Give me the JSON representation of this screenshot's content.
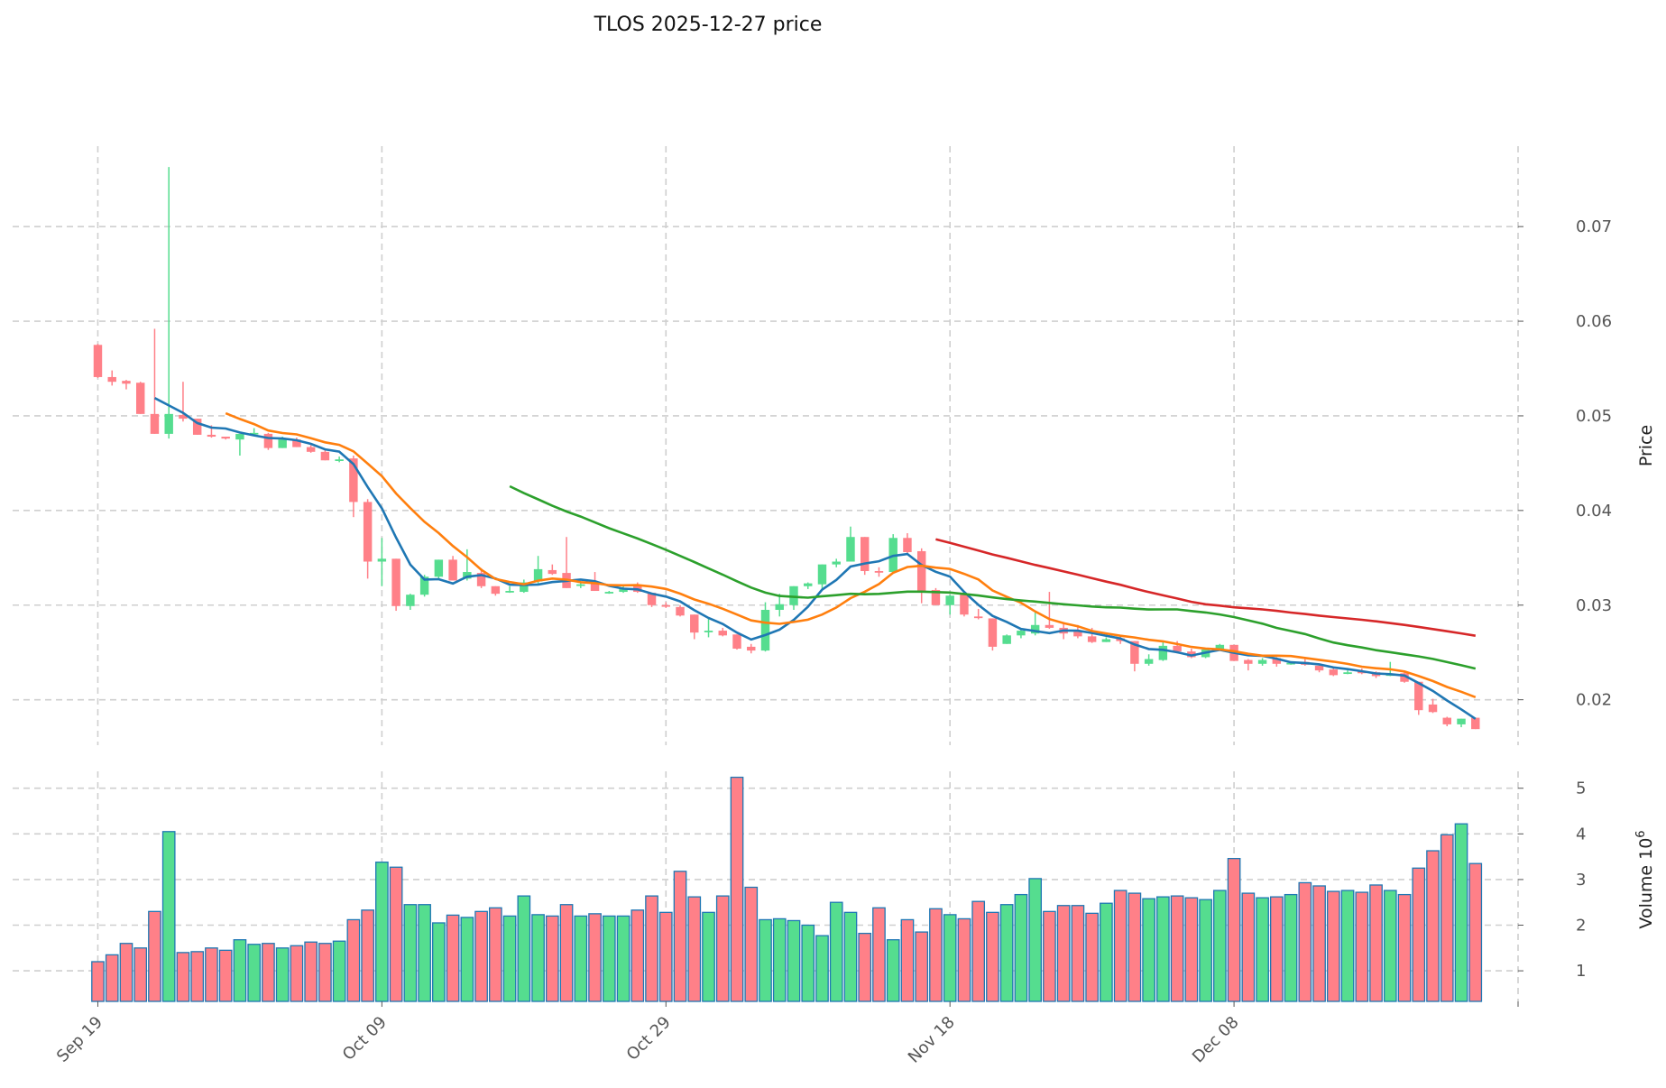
{
  "chart_data": {
    "type": "candlestick",
    "title": "TLOS  2025-12-27  price",
    "ylabel": "Price",
    "volume_ylabel": "Volume  10",
    "volume_ylabel_exp": "6",
    "start_date": "Sep 19",
    "x_tick_labels": [
      {
        "day": 0,
        "label": "Sep 19"
      },
      {
        "day": 20,
        "label": "Oct 09"
      },
      {
        "day": 40,
        "label": "Oct 29"
      },
      {
        "day": 60,
        "label": "Nov 18"
      },
      {
        "day": 80,
        "label": "Dec 08"
      },
      {
        "day": 100,
        "label": ""
      }
    ],
    "xlim": [
      -6,
      100
    ],
    "price_ylim": [
      0.0152,
      0.0785
    ],
    "price_ticks": [
      "0.02",
      "0.03",
      "0.04",
      "0.05",
      "0.06",
      "0.07"
    ],
    "volume_ylim": [
      0.33,
      5.37
    ],
    "volume_ticks": [
      "1",
      "2",
      "3",
      "4",
      "5"
    ],
    "grid": true,
    "colors": {
      "up": "#55dd8f",
      "down": "#ff8088",
      "volume_edge": "#1f77b4"
    },
    "moving_averages": [
      {
        "period": 5,
        "color": "#1f77b4"
      },
      {
        "period": 10,
        "color": "#ff7f0e"
      },
      {
        "period": 30,
        "color": "#2ca02c"
      },
      {
        "period": 60,
        "color": "#d62728"
      }
    ],
    "ohlc": [
      [
        0.0575,
        0.0576,
        0.054,
        0.0541
      ],
      [
        0.0541,
        0.0548,
        0.0532,
        0.0536
      ],
      [
        0.0537,
        0.0538,
        0.0528,
        0.0534
      ],
      [
        0.0535,
        0.0536,
        0.0502,
        0.0502
      ],
      [
        0.0502,
        0.0592,
        0.0481,
        0.0481
      ],
      [
        0.0481,
        0.0763,
        0.0476,
        0.0502
      ],
      [
        0.0501,
        0.0536,
        0.0494,
        0.0497
      ],
      [
        0.0497,
        0.0497,
        0.048,
        0.048
      ],
      [
        0.048,
        0.049,
        0.0477,
        0.0478
      ],
      [
        0.0478,
        0.0478,
        0.0475,
        0.0476
      ],
      [
        0.0475,
        0.0481,
        0.0458,
        0.0481
      ],
      [
        0.0481,
        0.0487,
        0.0481,
        0.0482
      ],
      [
        0.0481,
        0.0482,
        0.0464,
        0.0466
      ],
      [
        0.0466,
        0.0478,
        0.0466,
        0.0475
      ],
      [
        0.0475,
        0.0477,
        0.0467,
        0.0467
      ],
      [
        0.0467,
        0.0469,
        0.0461,
        0.0462
      ],
      [
        0.0462,
        0.0464,
        0.0453,
        0.0453
      ],
      [
        0.0453,
        0.0457,
        0.0451,
        0.0454
      ],
      [
        0.0455,
        0.0458,
        0.0393,
        0.0409
      ],
      [
        0.0409,
        0.0412,
        0.0328,
        0.0346
      ],
      [
        0.0346,
        0.0371,
        0.032,
        0.0349
      ],
      [
        0.0349,
        0.0349,
        0.0294,
        0.0299
      ],
      [
        0.0299,
        0.0312,
        0.0295,
        0.0311
      ],
      [
        0.0311,
        0.0332,
        0.0309,
        0.033
      ],
      [
        0.033,
        0.0348,
        0.0328,
        0.0348
      ],
      [
        0.0348,
        0.0352,
        0.0326,
        0.0326
      ],
      [
        0.0328,
        0.0359,
        0.0326,
        0.0335
      ],
      [
        0.0334,
        0.0339,
        0.0318,
        0.032
      ],
      [
        0.032,
        0.032,
        0.031,
        0.0312
      ],
      [
        0.0314,
        0.032,
        0.0313,
        0.0315
      ],
      [
        0.0314,
        0.0327,
        0.0313,
        0.0324
      ],
      [
        0.0325,
        0.0352,
        0.0323,
        0.0338
      ],
      [
        0.0337,
        0.0343,
        0.0332,
        0.0333
      ],
      [
        0.0334,
        0.0372,
        0.0318,
        0.0318
      ],
      [
        0.0321,
        0.0325,
        0.0318,
        0.0322
      ],
      [
        0.0324,
        0.0335,
        0.0315,
        0.0315
      ],
      [
        0.0313,
        0.0315,
        0.0312,
        0.0314
      ],
      [
        0.0314,
        0.032,
        0.0313,
        0.0318
      ],
      [
        0.032,
        0.0324,
        0.0313,
        0.0314
      ],
      [
        0.0313,
        0.0313,
        0.0298,
        0.03
      ],
      [
        0.03,
        0.0303,
        0.0297,
        0.0299
      ],
      [
        0.0298,
        0.03,
        0.0288,
        0.0289
      ],
      [
        0.029,
        0.029,
        0.0264,
        0.0271
      ],
      [
        0.0272,
        0.0287,
        0.0266,
        0.0273
      ],
      [
        0.0273,
        0.0276,
        0.0267,
        0.0268
      ],
      [
        0.0269,
        0.0269,
        0.0253,
        0.0254
      ],
      [
        0.0256,
        0.0259,
        0.0249,
        0.0252
      ],
      [
        0.0252,
        0.0303,
        0.0251,
        0.0295
      ],
      [
        0.0295,
        0.0312,
        0.0288,
        0.0301
      ],
      [
        0.03,
        0.032,
        0.0295,
        0.032
      ],
      [
        0.032,
        0.0324,
        0.0317,
        0.0323
      ],
      [
        0.0322,
        0.0343,
        0.0316,
        0.0343
      ],
      [
        0.0343,
        0.0349,
        0.034,
        0.0346
      ],
      [
        0.0346,
        0.0383,
        0.0346,
        0.0372
      ],
      [
        0.0372,
        0.0372,
        0.0332,
        0.0336
      ],
      [
        0.0336,
        0.034,
        0.033,
        0.0335
      ],
      [
        0.0335,
        0.0375,
        0.0335,
        0.0371
      ],
      [
        0.0371,
        0.0376,
        0.0355,
        0.0356
      ],
      [
        0.0357,
        0.036,
        0.0302,
        0.0314
      ],
      [
        0.0316,
        0.0318,
        0.03,
        0.03
      ],
      [
        0.03,
        0.0311,
        0.029,
        0.031
      ],
      [
        0.0311,
        0.0312,
        0.0288,
        0.029
      ],
      [
        0.0288,
        0.0296,
        0.0285,
        0.0287
      ],
      [
        0.0286,
        0.0286,
        0.0252,
        0.0256
      ],
      [
        0.0259,
        0.0269,
        0.0259,
        0.0268
      ],
      [
        0.0268,
        0.0276,
        0.0265,
        0.0273
      ],
      [
        0.027,
        0.0292,
        0.0268,
        0.0279
      ],
      [
        0.0279,
        0.0314,
        0.0275,
        0.0276
      ],
      [
        0.0276,
        0.0282,
        0.0264,
        0.027
      ],
      [
        0.0272,
        0.0279,
        0.0265,
        0.0267
      ],
      [
        0.0267,
        0.0276,
        0.026,
        0.0261
      ],
      [
        0.0261,
        0.0266,
        0.0261,
        0.0264
      ],
      [
        0.0265,
        0.0267,
        0.0259,
        0.0262
      ],
      [
        0.0262,
        0.0262,
        0.023,
        0.0238
      ],
      [
        0.0238,
        0.0248,
        0.0236,
        0.0243
      ],
      [
        0.0242,
        0.0261,
        0.0241,
        0.0257
      ],
      [
        0.0257,
        0.0262,
        0.0249,
        0.0251
      ],
      [
        0.0251,
        0.0254,
        0.0244,
        0.0245
      ],
      [
        0.0245,
        0.0254,
        0.0244,
        0.0253
      ],
      [
        0.0253,
        0.0259,
        0.0252,
        0.0258
      ],
      [
        0.0258,
        0.0258,
        0.0241,
        0.0241
      ],
      [
        0.0242,
        0.0243,
        0.0231,
        0.0238
      ],
      [
        0.0238,
        0.0244,
        0.0236,
        0.0242
      ],
      [
        0.0244,
        0.0245,
        0.0235,
        0.0238
      ],
      [
        0.0238,
        0.024,
        0.0237,
        0.0239
      ],
      [
        0.024,
        0.0243,
        0.0236,
        0.0237
      ],
      [
        0.0236,
        0.0237,
        0.0229,
        0.0231
      ],
      [
        0.0232,
        0.0233,
        0.0225,
        0.0226
      ],
      [
        0.0228,
        0.0231,
        0.0227,
        0.0229
      ],
      [
        0.023,
        0.0233,
        0.0227,
        0.0228
      ],
      [
        0.0229,
        0.023,
        0.0223,
        0.0225
      ],
      [
        0.0226,
        0.024,
        0.0225,
        0.0227
      ],
      [
        0.0228,
        0.0229,
        0.0218,
        0.0219
      ],
      [
        0.0219,
        0.0219,
        0.0184,
        0.0189
      ],
      [
        0.0195,
        0.0201,
        0.0186,
        0.0187
      ],
      [
        0.0181,
        0.0182,
        0.0172,
        0.0174
      ],
      [
        0.0174,
        0.018,
        0.0171,
        0.018
      ],
      [
        0.0181,
        0.0181,
        0.0169,
        0.0169
      ]
    ],
    "volume": [
      1.2,
      1.35,
      1.6,
      1.5,
      2.3,
      4.05,
      1.4,
      1.42,
      1.5,
      1.45,
      1.68,
      1.58,
      1.6,
      1.5,
      1.55,
      1.63,
      1.6,
      1.65,
      2.12,
      2.33,
      3.38,
      3.27,
      2.45,
      2.45,
      2.05,
      2.22,
      2.17,
      2.3,
      2.38,
      2.2,
      2.64,
      2.23,
      2.2,
      2.45,
      2.2,
      2.25,
      2.2,
      2.2,
      2.33,
      2.64,
      2.28,
      3.18,
      2.62,
      2.28,
      2.64,
      5.24,
      2.83,
      2.12,
      2.14,
      2.1,
      2.0,
      1.77,
      2.5,
      2.28,
      1.82,
      2.38,
      1.68,
      2.12,
      1.85,
      2.36,
      2.23,
      2.14,
      2.52,
      2.28,
      2.45,
      2.67,
      3.02,
      2.3,
      2.43,
      2.43,
      2.26,
      2.48,
      2.76,
      2.7,
      2.58,
      2.62,
      2.64,
      2.6,
      2.56,
      2.76,
      3.46,
      2.7,
      2.6,
      2.62,
      2.67,
      2.93,
      2.86,
      2.74,
      2.76,
      2.72,
      2.88,
      2.76,
      2.67,
      3.25,
      3.63,
      3.98,
      4.22,
      3.35
    ]
  }
}
